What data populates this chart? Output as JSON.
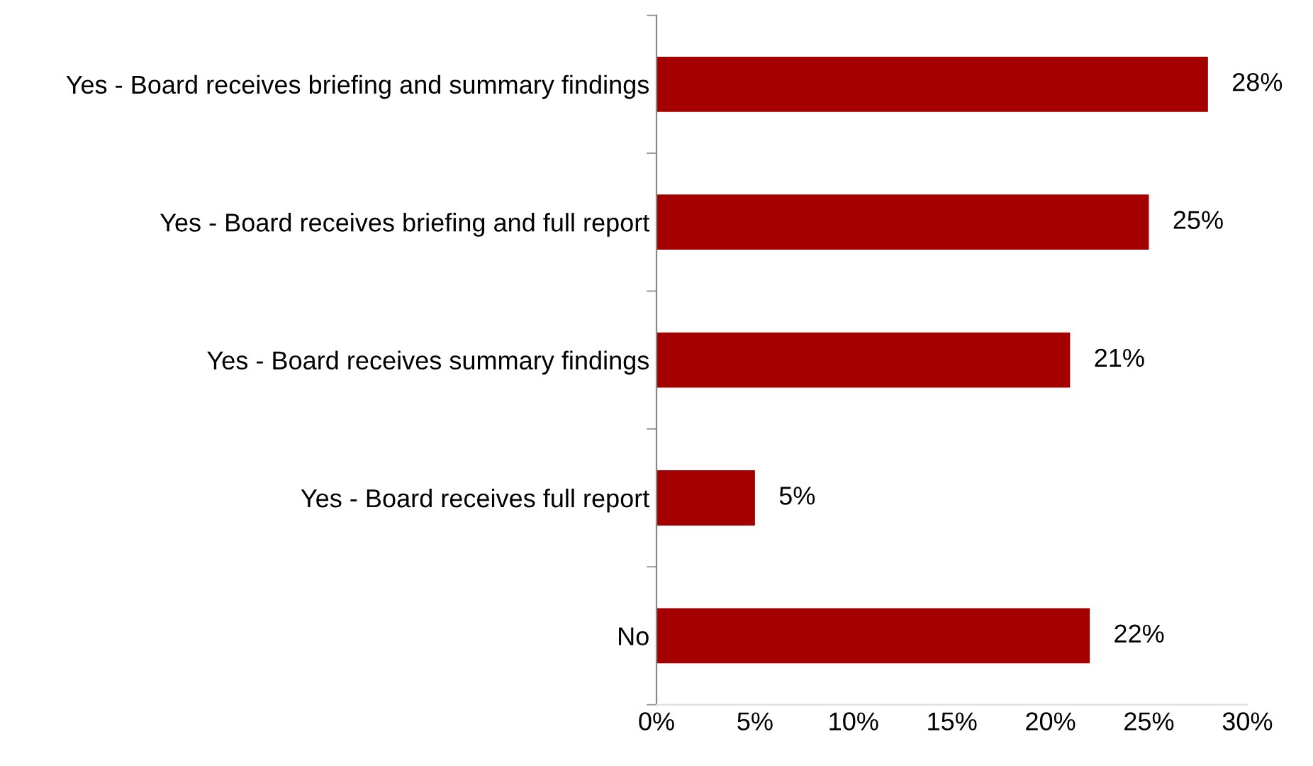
{
  "chart_data": {
    "type": "bar",
    "orientation": "horizontal",
    "categories": [
      "Yes - Board receives briefing and summary findings",
      "Yes - Board receives briefing and full report",
      "Yes - Board receives summary findings",
      "Yes - Board receives full report",
      "No"
    ],
    "values": [
      28,
      25,
      21,
      5,
      22
    ],
    "value_labels": [
      "28%",
      "25%",
      "21%",
      "5%",
      "22%"
    ],
    "color": "#a50000",
    "xlim": [
      0,
      30
    ],
    "xticks": [
      {
        "value": 0,
        "label": "0%"
      },
      {
        "value": 5,
        "label": "5%"
      },
      {
        "value": 10,
        "label": "10%"
      },
      {
        "value": 15,
        "label": "15%"
      },
      {
        "value": 20,
        "label": "20%"
      },
      {
        "value": 25,
        "label": "25%"
      },
      {
        "value": 30,
        "label": "30%"
      }
    ],
    "grid": false,
    "legend": false
  }
}
